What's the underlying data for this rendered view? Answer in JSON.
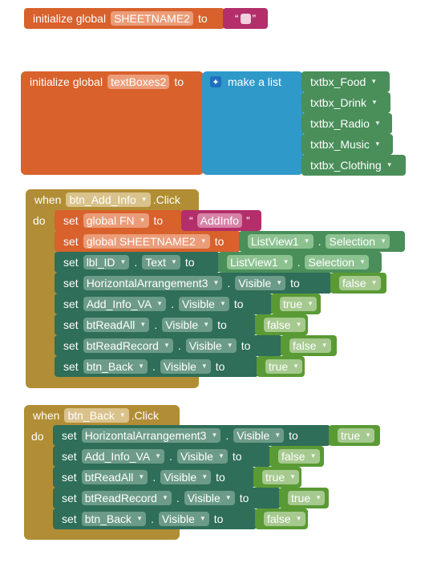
{
  "init1": {
    "kw": "initialize global",
    "name": "SHEETNAME2",
    "to": "to",
    "open_quote": "“",
    "close_quote": "”"
  },
  "init2": {
    "kw": "initialize global",
    "name": "textBoxes2",
    "to": "to",
    "make_list": "make a list",
    "items": [
      "txtbx_Food",
      "txtbx_Drink",
      "txtbx_Radio",
      "txtbx_Music",
      "txtbx_Clothing"
    ]
  },
  "event1": {
    "when": "when",
    "do": "do",
    "component": "btn_Add_Info",
    "event": ".Click",
    "set1": {
      "set": "set",
      "var": "global FN",
      "to": "to",
      "string": "AddInfo"
    },
    "set2": {
      "set": "set",
      "var": "global SHEETNAME2",
      "to": "to",
      "comp": "ListView1",
      "prop": "Selection"
    },
    "set3": {
      "set": "set",
      "comp": "lbl_ID",
      "prop": "Text",
      "to": "to",
      "src_comp": "ListView1",
      "src_prop": "Selection"
    },
    "props": [
      {
        "comp": "HorizontalArrangement3",
        "prop": "Visible",
        "value": "false"
      },
      {
        "comp": "Add_Info_VA",
        "prop": "Visible",
        "value": "true"
      },
      {
        "comp": "btReadAll",
        "prop": "Visible",
        "value": "false"
      },
      {
        "comp": "btReadRecord",
        "prop": "Visible",
        "value": "false"
      },
      {
        "comp": "btn_Back",
        "prop": "Visible",
        "value": "true"
      }
    ]
  },
  "event2": {
    "when": "when",
    "do": "do",
    "component": "btn_Back",
    "event": ".Click",
    "props": [
      {
        "comp": "HorizontalArrangement3",
        "prop": "Visible",
        "value": "true"
      },
      {
        "comp": "Add_Info_VA",
        "prop": "Visible",
        "value": "false"
      },
      {
        "comp": "btReadAll",
        "prop": "Visible",
        "value": "true"
      },
      {
        "comp": "btReadRecord",
        "prop": "Visible",
        "value": "true"
      },
      {
        "comp": "btn_Back",
        "prop": "Visible",
        "value": "false"
      }
    ]
  },
  "labels": {
    "set": "set",
    "to": "to",
    "dot": "."
  },
  "colors": {
    "orange": "#d8612c",
    "teal": "#2f6e58",
    "gold": "#b18e35",
    "blue": "#2f99c9",
    "green": "#4a8e5a",
    "pink": "#b32e6a",
    "bool": "#5a9a35"
  }
}
